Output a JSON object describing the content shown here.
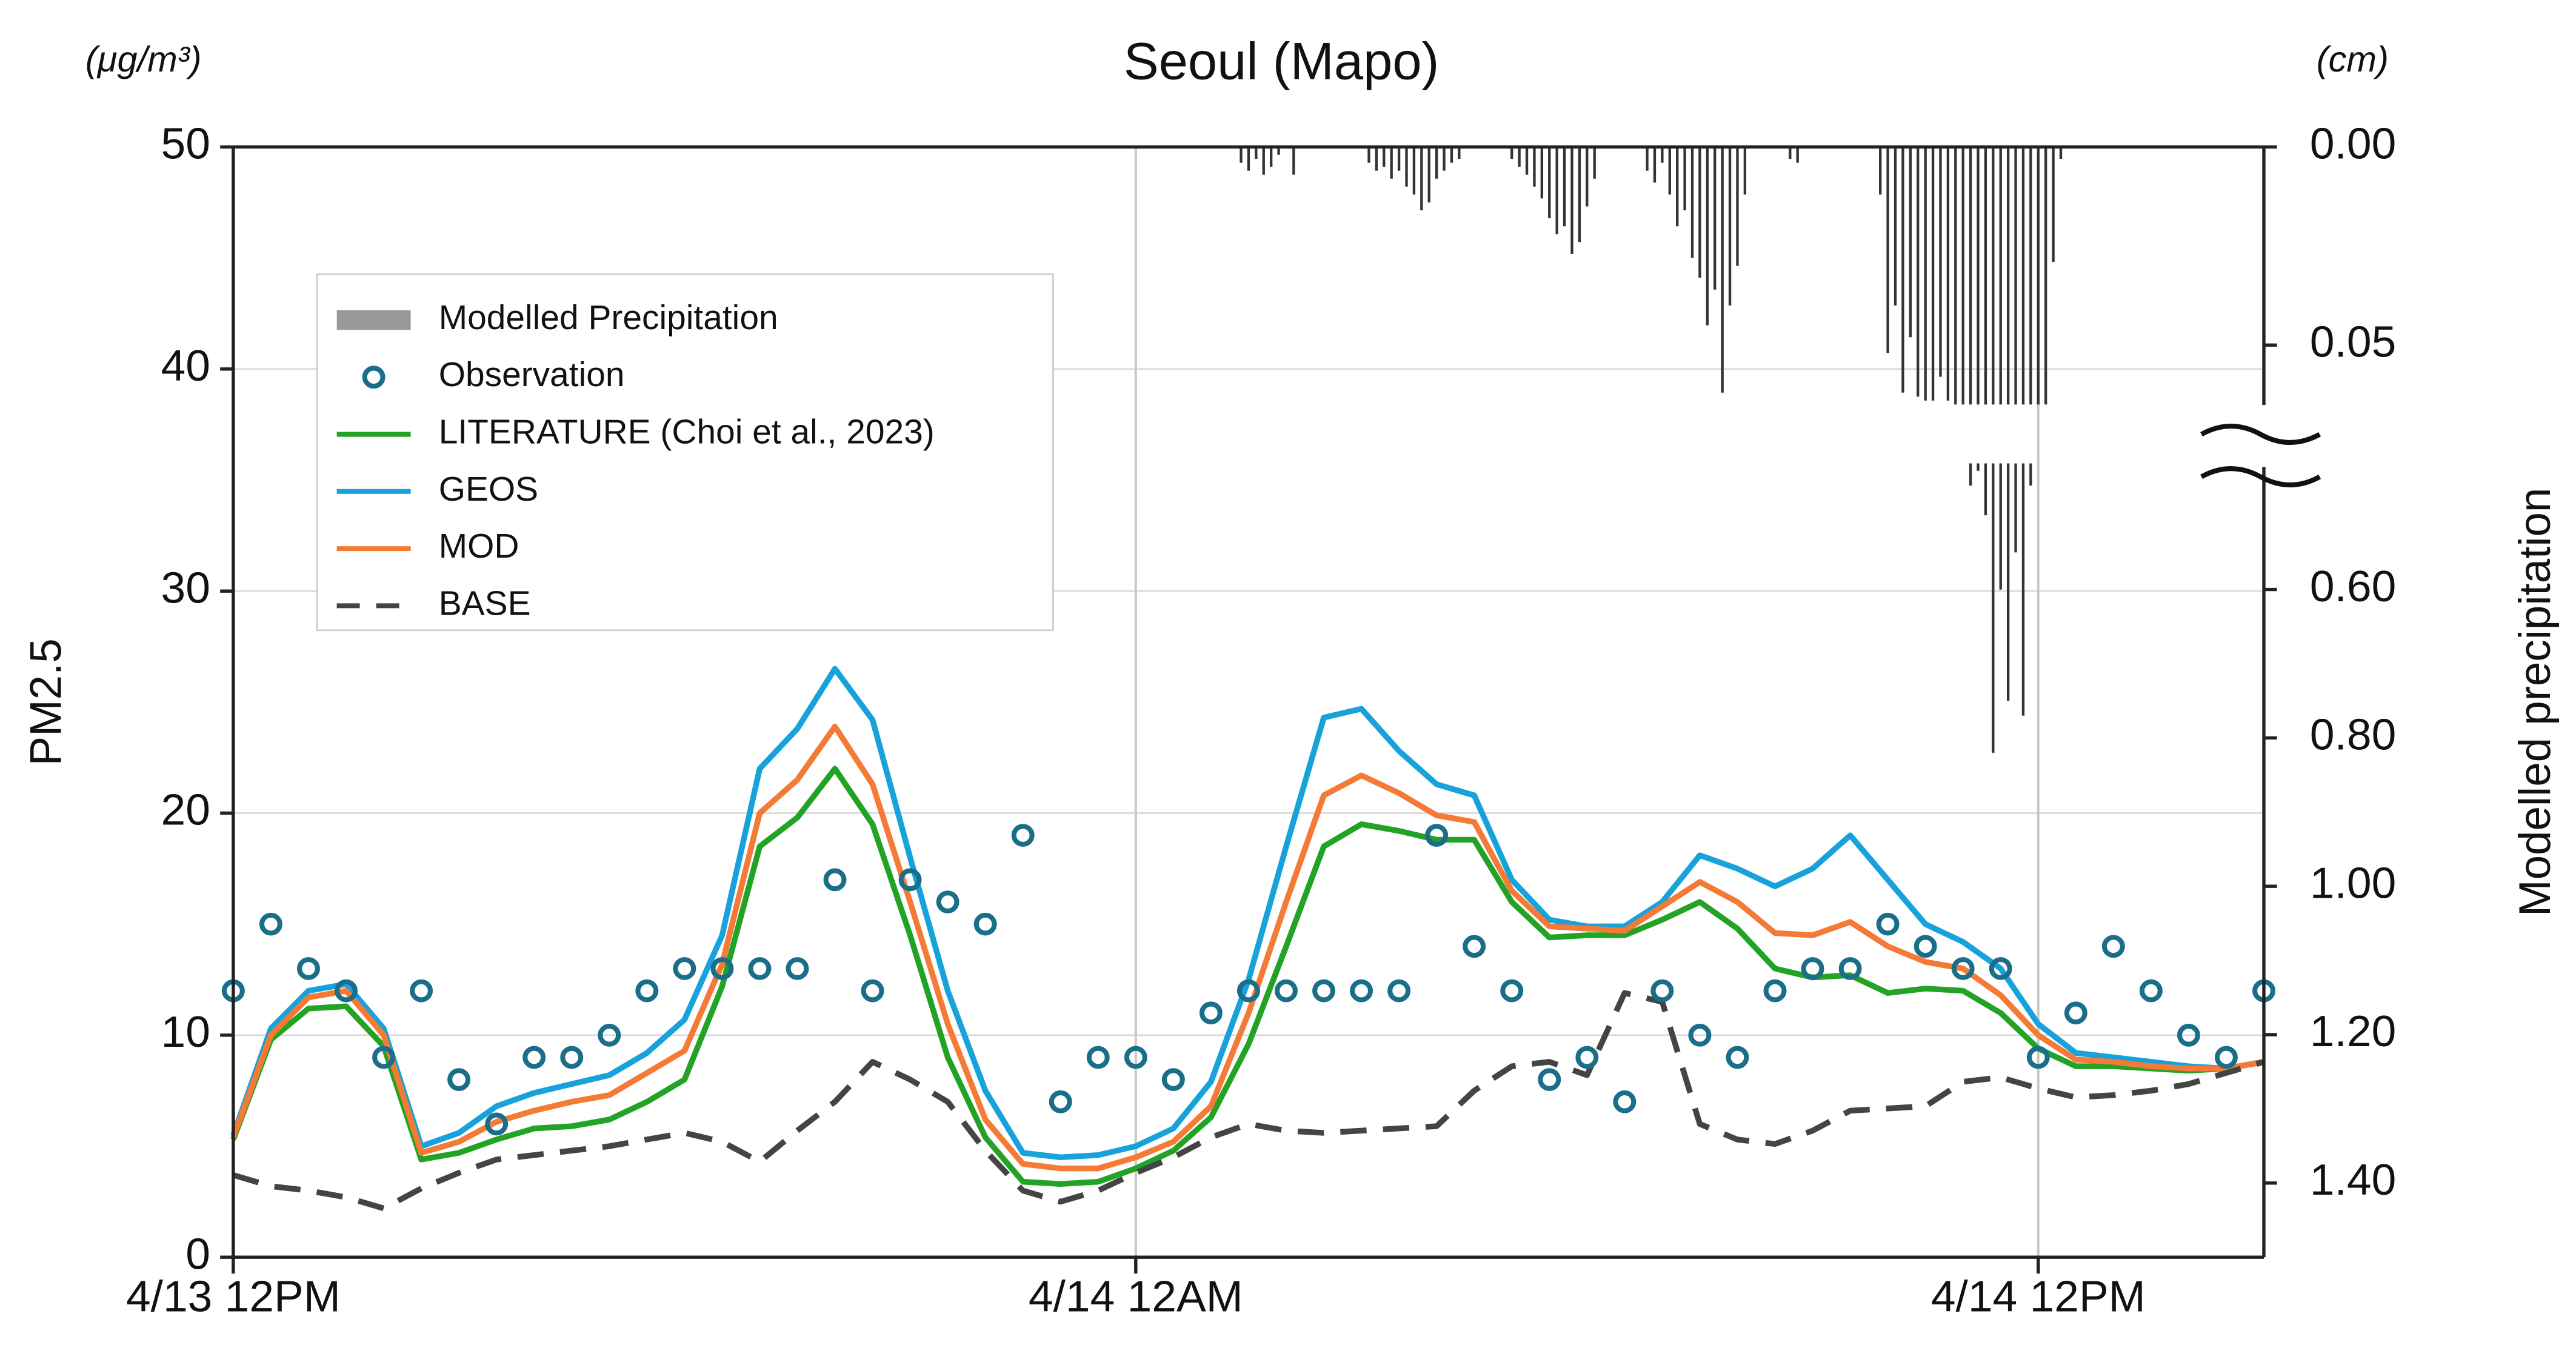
{
  "chart_data": {
    "type": "line",
    "title": "Seoul (Mapo)",
    "y_unit": "(μg/m³)",
    "y2_unit": "(cm)",
    "ylabel": "PM2.5",
    "y2label": "Modelled precipitation",
    "xlim": [
      0,
      54
    ],
    "xticks": [
      {
        "value": 0,
        "label": "4/13 12PM"
      },
      {
        "value": 24,
        "label": "4/14 12AM"
      },
      {
        "value": 48,
        "label": "4/14 12PM"
      }
    ],
    "ylim": [
      0,
      50
    ],
    "yticks": [
      0,
      10,
      20,
      30,
      40,
      50
    ],
    "y2lim": [
      0,
      1.5
    ],
    "y2_inverted": true,
    "y2break": [
      0.065,
      0.43
    ],
    "y2ticks": [
      {
        "value": 0,
        "label": "0.00"
      },
      {
        "value": 0.05,
        "label": "0.05"
      },
      {
        "value": 0.6,
        "label": "0.60"
      },
      {
        "value": 0.8,
        "label": "0.80"
      },
      {
        "value": 1.0,
        "label": "1.00"
      },
      {
        "value": 1.2,
        "label": "1.20"
      },
      {
        "value": 1.4,
        "label": "1.40"
      }
    ],
    "grid": true,
    "legend": "upper left",
    "x": [
      0,
      1,
      2,
      3,
      4,
      5,
      6,
      7,
      8,
      9,
      10,
      11,
      12,
      13,
      14,
      15,
      16,
      17,
      18,
      19,
      20,
      21,
      22,
      23,
      24,
      25,
      26,
      27,
      28,
      29,
      30,
      31,
      32,
      33,
      34,
      35,
      36,
      37,
      38,
      39,
      40,
      41,
      42,
      43,
      44,
      45,
      46,
      47,
      48,
      49,
      50,
      51,
      52,
      53,
      54
    ],
    "series": [
      {
        "name": "Modelled Precipitation",
        "type": "bar",
        "axis": "y2",
        "color": "#333333",
        "x": [
          26.8,
          27.0,
          27.2,
          27.4,
          27.6,
          27.8,
          28.2,
          30.2,
          30.4,
          30.6,
          30.8,
          31.0,
          31.2,
          31.4,
          31.6,
          31.8,
          32.0,
          32.2,
          32.4,
          32.6,
          34.0,
          34.2,
          34.4,
          34.6,
          34.8,
          35.0,
          35.2,
          35.4,
          35.6,
          35.8,
          36.0,
          36.2,
          37.6,
          37.8,
          38.0,
          38.2,
          38.4,
          38.6,
          38.8,
          39.0,
          39.2,
          39.4,
          39.6,
          39.8,
          40.0,
          40.2,
          41.4,
          41.6,
          43.8,
          44.0,
          44.2,
          44.4,
          44.6,
          44.8,
          45.0,
          45.2,
          45.4,
          45.6,
          45.8,
          46.0,
          46.2,
          46.4,
          46.6,
          46.8,
          47.0,
          47.2,
          47.4,
          47.6,
          47.8,
          48.0,
          48.2,
          48.4,
          48.6
        ],
        "values": [
          0.004,
          0.006,
          0.003,
          0.007,
          0.005,
          0.002,
          0.007,
          0.004,
          0.006,
          0.005,
          0.008,
          0.006,
          0.01,
          0.012,
          0.016,
          0.014,
          0.008,
          0.006,
          0.004,
          0.003,
          0.003,
          0.005,
          0.007,
          0.01,
          0.013,
          0.018,
          0.022,
          0.02,
          0.027,
          0.024,
          0.015,
          0.008,
          0.006,
          0.009,
          0.004,
          0.012,
          0.02,
          0.016,
          0.028,
          0.033,
          0.045,
          0.036,
          0.062,
          0.04,
          0.03,
          0.012,
          0.003,
          0.004,
          0.012,
          0.052,
          0.04,
          0.062,
          0.048,
          0.063,
          0.064,
          0.064,
          0.058,
          0.064,
          0.3,
          0.2,
          0.46,
          0.44,
          0.5,
          0.82,
          0.6,
          0.75,
          0.55,
          0.77,
          0.46,
          0.2,
          0.1,
          0.029,
          0.003
        ]
      },
      {
        "name": "Observation",
        "type": "scatter",
        "color": "#1a6e8a",
        "values": [
          12,
          15,
          13,
          12,
          9,
          12,
          8,
          6,
          9,
          9,
          10,
          12,
          13,
          13,
          13,
          13,
          17,
          12,
          17,
          16,
          15,
          19,
          7,
          9,
          9,
          8,
          11,
          12,
          12,
          12,
          12,
          12,
          19,
          14,
          12,
          8,
          9,
          7,
          12,
          10,
          9,
          12,
          13,
          13,
          15,
          14,
          13,
          13,
          9,
          11,
          14,
          12,
          10,
          9,
          12
        ]
      },
      {
        "name": "LITERATURE (Choi et al., 2023)",
        "type": "line",
        "color": "#22a326",
        "values": [
          5.3,
          9.8,
          11.2,
          11.3,
          9.5,
          4.4,
          4.7,
          5.3,
          5.8,
          5.9,
          6.2,
          7,
          8,
          12.2,
          18.5,
          19.8,
          22,
          19.5,
          14.5,
          9,
          5.4,
          3.4,
          3.3,
          3.4,
          4,
          4.8,
          6.3,
          9.6,
          14,
          18.5,
          19.5,
          19.2,
          18.8,
          18.8,
          16,
          14.4,
          14.5,
          14.5,
          15.2,
          16,
          14.8,
          13,
          12.6,
          12.7,
          11.9,
          12.1,
          12,
          11,
          9.4,
          8.6,
          8.6,
          8.5,
          8.4,
          8.5,
          8.8
        ]
      },
      {
        "name": "GEOS",
        "type": "line",
        "color": "#17a2dc",
        "values": [
          5.5,
          10.3,
          12,
          12.3,
          10.3,
          5,
          5.6,
          6.8,
          7.4,
          7.8,
          8.2,
          9.2,
          10.7,
          14.5,
          22,
          23.8,
          26.5,
          24.2,
          18,
          12,
          7.5,
          4.7,
          4.5,
          4.6,
          5,
          5.8,
          7.9,
          12.5,
          18.5,
          24.3,
          24.7,
          22.8,
          21.3,
          20.8,
          17,
          15.2,
          14.9,
          14.9,
          16,
          18.1,
          17.5,
          16.7,
          17.5,
          19,
          17,
          15,
          14.2,
          13,
          10.5,
          9.2,
          9,
          8.8,
          8.6,
          8.5,
          8.8
        ]
      },
      {
        "name": "MOD",
        "type": "line",
        "color": "#f47a36",
        "values": [
          5.4,
          10,
          11.7,
          12,
          10,
          4.7,
          5.2,
          6.1,
          6.6,
          7,
          7.3,
          8.3,
          9.3,
          13.2,
          20,
          21.5,
          23.9,
          21.3,
          16,
          10.5,
          6.2,
          4.2,
          4,
          4,
          4.5,
          5.2,
          6.8,
          11,
          16,
          20.8,
          21.7,
          20.9,
          19.9,
          19.6,
          16.5,
          14.9,
          14.8,
          14.7,
          15.8,
          16.9,
          16,
          14.6,
          14.5,
          15.1,
          14,
          13.3,
          13,
          11.8,
          10,
          8.9,
          8.8,
          8.6,
          8.5,
          8.5,
          8.8
        ]
      },
      {
        "name": "BASE",
        "type": "line",
        "dashed": true,
        "color": "#444444",
        "values": [
          3.7,
          3.2,
          3.0,
          2.7,
          2.2,
          3.1,
          3.8,
          4.4,
          4.6,
          4.8,
          5.0,
          5.3,
          5.6,
          5.2,
          4.3,
          5.7,
          7,
          8.8,
          8,
          7,
          4.8,
          3,
          2.5,
          3,
          3.8,
          4.5,
          5.4,
          6,
          5.7,
          5.6,
          5.7,
          5.8,
          5.9,
          7.5,
          8.6,
          8.8,
          8.2,
          11.9,
          11.5,
          6,
          5.3,
          5.1,
          5.7,
          6.6,
          6.7,
          6.8,
          7.9,
          8.1,
          7.6,
          7.2,
          7.3,
          7.5,
          7.8,
          8.3,
          8.8
        ]
      }
    ]
  }
}
